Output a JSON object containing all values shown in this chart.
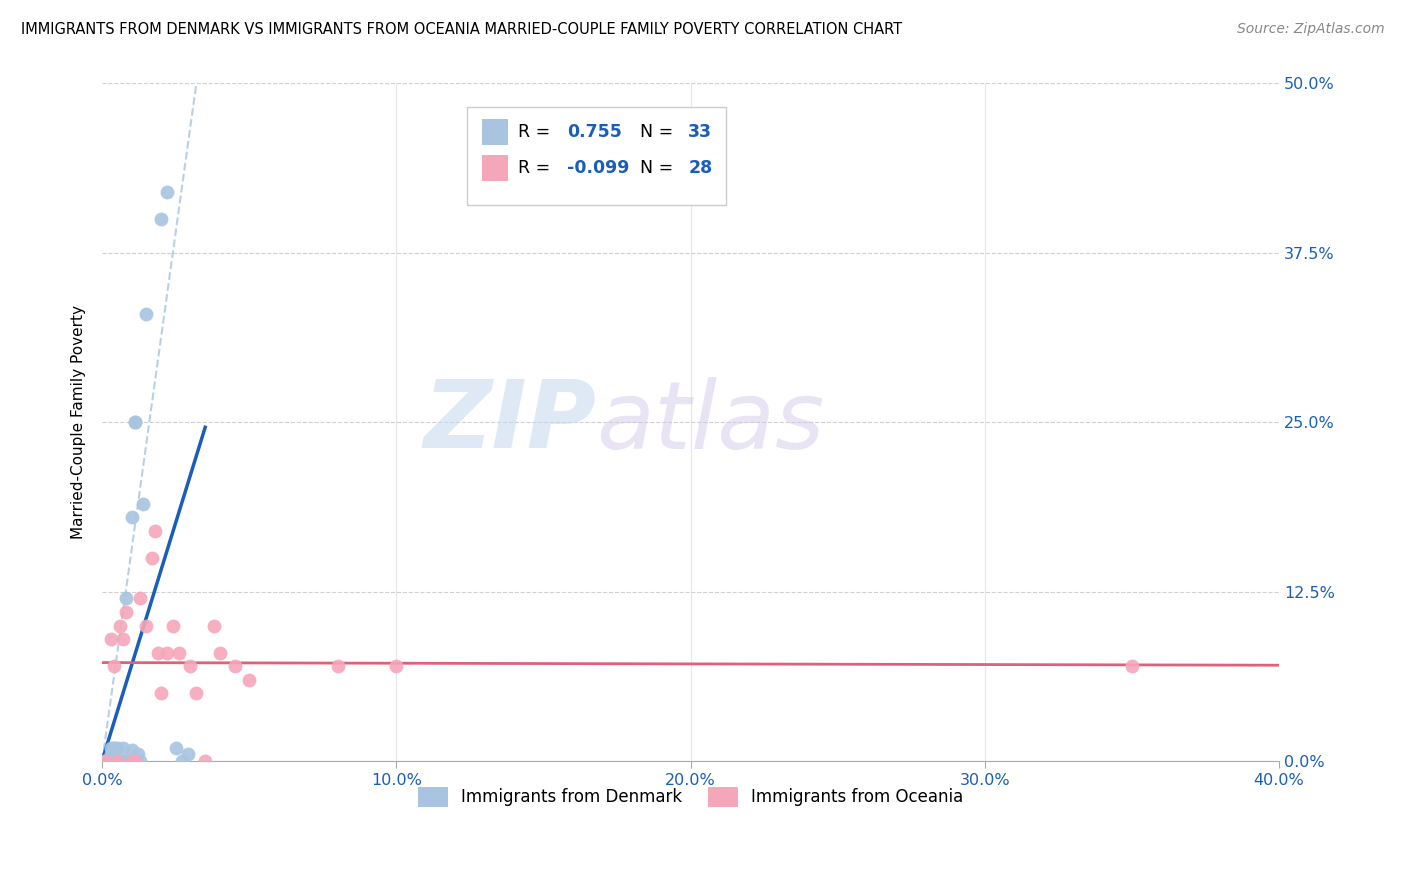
{
  "title": "IMMIGRANTS FROM DENMARK VS IMMIGRANTS FROM OCEANIA MARRIED-COUPLE FAMILY POVERTY CORRELATION CHART",
  "source": "Source: ZipAtlas.com",
  "ylabel": "Married-Couple Family Poverty",
  "xlim": [
    0.0,
    40.0
  ],
  "ylim": [
    0.0,
    50.0
  ],
  "yticks": [
    0.0,
    12.5,
    25.0,
    37.5,
    50.0
  ],
  "ytick_labels": [
    "0.0%",
    "12.5%",
    "25.0%",
    "37.5%",
    "50.0%"
  ],
  "xticks": [
    0.0,
    10.0,
    20.0,
    30.0,
    40.0
  ],
  "xtick_labels": [
    "0.0%",
    "10.0%",
    "20.0%",
    "30.0%",
    "40.0%"
  ],
  "denmark_color": "#a8c4e0",
  "oceania_color": "#f4a7b9",
  "denmark_line_color": "#1a5eb8",
  "oceania_line_color": "#e0607a",
  "denmark_R": 0.755,
  "denmark_N": 33,
  "oceania_R": -0.099,
  "oceania_N": 28,
  "watermark_zip": "ZIP",
  "watermark_atlas": "atlas",
  "watermark_color_zip": "#c8d8f0",
  "watermark_color_atlas": "#d4c8e8",
  "denmark_x": [
    0.1,
    0.2,
    0.2,
    0.3,
    0.3,
    0.3,
    0.3,
    0.4,
    0.4,
    0.4,
    0.5,
    0.5,
    0.5,
    0.6,
    0.6,
    0.7,
    0.7,
    0.8,
    0.8,
    0.9,
    1.0,
    1.0,
    1.1,
    1.1,
    1.2,
    1.3,
    1.4,
    1.5,
    2.0,
    2.2,
    2.5,
    2.7,
    2.9
  ],
  "denmark_y": [
    0.0,
    0.0,
    0.0,
    0.0,
    0.0,
    0.5,
    1.0,
    0.0,
    1.0,
    1.0,
    0.0,
    0.0,
    1.0,
    0.0,
    0.0,
    0.0,
    1.0,
    12.0,
    0.0,
    0.0,
    0.8,
    18.0,
    25.0,
    25.0,
    0.5,
    0.0,
    19.0,
    33.0,
    40.0,
    42.0,
    1.0,
    0.0,
    0.5
  ],
  "oceania_x": [
    0.1,
    0.3,
    0.4,
    0.5,
    0.6,
    0.7,
    0.8,
    1.0,
    1.1,
    1.3,
    1.5,
    1.7,
    1.8,
    1.9,
    2.0,
    2.2,
    2.4,
    2.6,
    3.0,
    3.2,
    3.5,
    3.8,
    4.0,
    4.5,
    5.0,
    8.0,
    10.0,
    35.0
  ],
  "oceania_y": [
    0.0,
    9.0,
    7.0,
    0.0,
    10.0,
    9.0,
    11.0,
    0.0,
    0.0,
    12.0,
    10.0,
    15.0,
    17.0,
    8.0,
    5.0,
    8.0,
    10.0,
    8.0,
    7.0,
    5.0,
    0.0,
    10.0,
    8.0,
    7.0,
    6.0,
    7.0,
    7.0,
    7.0
  ],
  "background_color": "#ffffff",
  "grid_color": "#d0d0d0",
  "legend_R1_text": "R = ",
  "legend_R1_val": " 0.755",
  "legend_N1_text": "N = ",
  "legend_N1_val": "33",
  "legend_R2_text": "R = ",
  "legend_R2_val": "-0.099",
  "legend_N2_text": "N = ",
  "legend_N2_val": "28"
}
